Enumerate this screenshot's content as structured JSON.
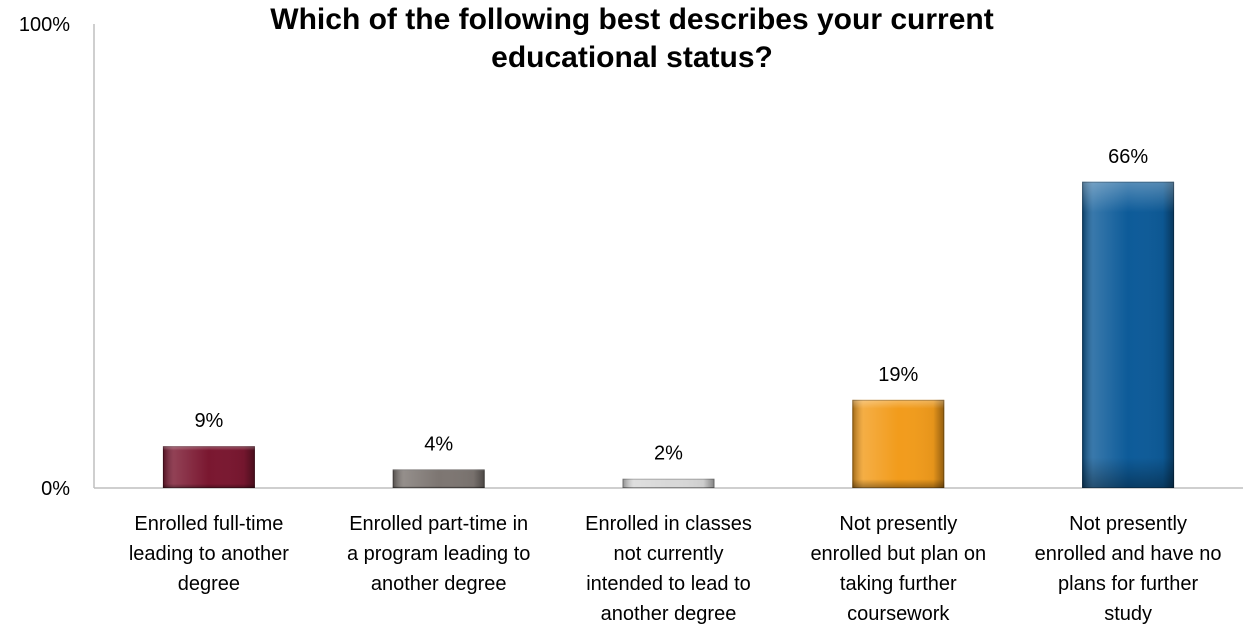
{
  "chart_data": {
    "type": "bar",
    "title_lines": [
      "Which of the following best describes your current",
      "educational status?"
    ],
    "categories": [
      [
        "Enrolled full-time",
        "leading to another",
        "degree"
      ],
      [
        "Enrolled part-time in",
        "a program leading to",
        "another degree"
      ],
      [
        "Enrolled in classes",
        "not currently",
        "intended to lead to",
        "another degree"
      ],
      [
        "Not presently",
        "enrolled but plan on",
        "taking further",
        "coursework"
      ],
      [
        "Not presently",
        "enrolled and have no",
        "plans for further",
        "study"
      ]
    ],
    "values": [
      9,
      4,
      2,
      19,
      66
    ],
    "data_labels": [
      "9%",
      "4%",
      "2%",
      "19%",
      "66%"
    ],
    "colors": [
      "#7a1730",
      "#7d7672",
      "#d8d8d8",
      "#f29c1c",
      "#0d5b99"
    ],
    "ylim": [
      0,
      100
    ],
    "y_tick_labels": [
      "0%",
      "100%"
    ],
    "grid": false,
    "legend": "none"
  }
}
